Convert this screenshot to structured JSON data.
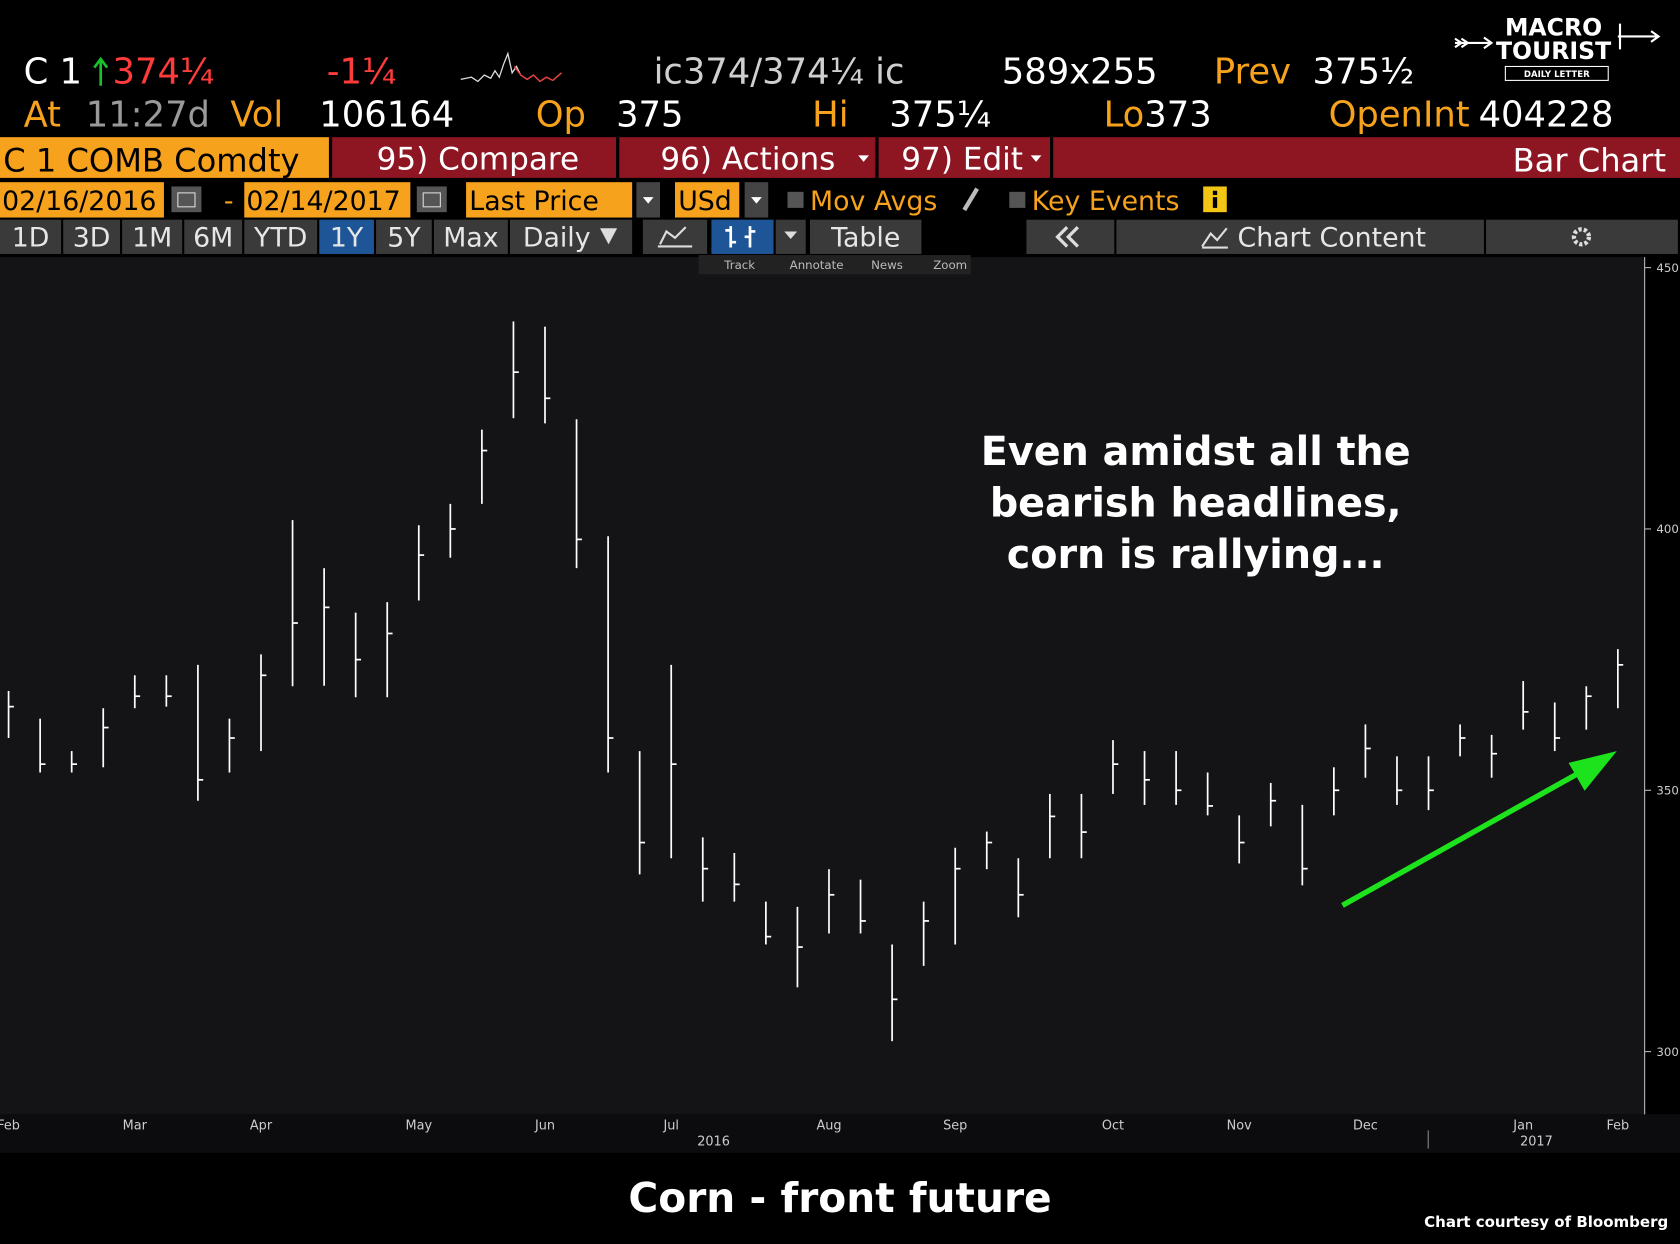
{
  "header": {
    "ticker": "C 1",
    "last": "374¼",
    "change": "-1¼",
    "bid_ask": "ic374/374¼ ic",
    "size": "589x255",
    "prev_label": "Prev",
    "prev": "375½",
    "time_label": "At",
    "time": "11:27d",
    "vol_label": "Vol",
    "vol": "106164",
    "open_label": "Op",
    "open": "375",
    "high_label": "Hi",
    "high": "375¼",
    "low_label": "Lo",
    "low": "373",
    "oi_label": "OpenInt",
    "oi": "404228"
  },
  "logo": {
    "line1": "MACRO",
    "line2": "TOURIST",
    "tagline": "DAILY LETTER"
  },
  "toolbar": {
    "security": "C 1 COMB Comdty",
    "menus": [
      "95) Compare",
      "96) Actions",
      "97) Edit"
    ],
    "view": "Bar Chart"
  },
  "controls": {
    "start": "02/16/2016",
    "date_separator": "-",
    "end": "02/14/2017",
    "field": "Last Price",
    "currency": "USd",
    "mov_avgs": "Mov Avgs",
    "key_events": "Key Events"
  },
  "periods": [
    "1D",
    "3D",
    "1M",
    "6M",
    "YTD",
    "1Y",
    "5Y",
    "Max"
  ],
  "active_period": "1Y",
  "frequency": "Daily",
  "table": "Table",
  "chart_content": "Chart Content",
  "tools": [
    "Track",
    "Annotate",
    "News",
    "Zoom"
  ],
  "annotation": [
    "Even amidst all the",
    "bearish headlines,",
    "corn is rallying..."
  ],
  "caption": "Corn - front future",
  "credit": "Chart courtesy of Bloomberg",
  "chart_data": {
    "type": "ohlc",
    "categories": [
      "Feb",
      null,
      null,
      null,
      "Mar",
      null,
      null,
      null,
      "Apr",
      null,
      null,
      null,
      null,
      "May",
      null,
      null,
      null,
      "Jun",
      null,
      null,
      null,
      "Jul",
      null,
      null,
      null,
      null,
      "Aug",
      null,
      null,
      null,
      "Sep",
      null,
      null,
      null,
      null,
      "Oct",
      null,
      null,
      null,
      "Nov",
      null,
      null,
      null,
      "Dec",
      null,
      null,
      null,
      null,
      "Jan",
      null,
      null,
      "Feb"
    ],
    "year_labels": [
      "2016",
      "2017"
    ],
    "color": "#ffffff",
    "high": [
      369,
      363.7,
      357.5,
      365.7,
      372,
      372,
      374,
      363.7,
      376,
      401.7,
      392.5,
      384,
      386,
      400.7,
      404.8,
      419,
      439.7,
      438.7,
      421,
      398.6,
      357.5,
      374,
      341,
      338,
      328.7,
      327.7,
      334.9,
      332.9,
      320.5,
      328.7,
      339,
      342.1,
      337,
      349.3,
      349.3,
      359.6,
      357.5,
      357.5,
      353.4,
      345.2,
      351.4,
      347.2,
      354.4,
      362.6,
      356.5,
      356.5,
      362.6,
      360.6,
      370.9,
      366.8,
      369.9,
      377
    ],
    "low": [
      360,
      353.4,
      353.4,
      354.4,
      365.7,
      366,
      348,
      353.4,
      357.5,
      369.9,
      370,
      367.8,
      367.8,
      386.3,
      394.5,
      404.8,
      421.2,
      420.2,
      392.5,
      353.4,
      333.9,
      337,
      328.7,
      328.7,
      320.5,
      312.3,
      322.6,
      322.6,
      302,
      316.4,
      320.5,
      334.9,
      325.7,
      337,
      337,
      349.3,
      347.2,
      347.2,
      345.2,
      336,
      343.1,
      331.8,
      345.2,
      352.4,
      347.2,
      346.2,
      356.5,
      352.4,
      361.6,
      357.5,
      361.6,
      365.7
    ],
    "close": [
      366,
      355,
      355,
      362,
      368,
      368,
      352,
      360,
      372,
      382,
      385,
      375,
      380,
      395,
      400,
      415,
      430,
      425,
      398,
      360,
      340,
      355,
      335,
      332,
      322,
      320,
      330,
      325,
      310,
      325,
      335,
      340,
      330,
      345,
      342,
      355,
      352,
      350,
      347,
      340,
      348,
      335,
      350,
      358,
      350,
      350,
      360,
      357,
      365,
      360,
      368,
      374
    ],
    "ylim": [
      288,
      452
    ],
    "yticks": [
      300,
      350,
      400,
      450
    ]
  }
}
